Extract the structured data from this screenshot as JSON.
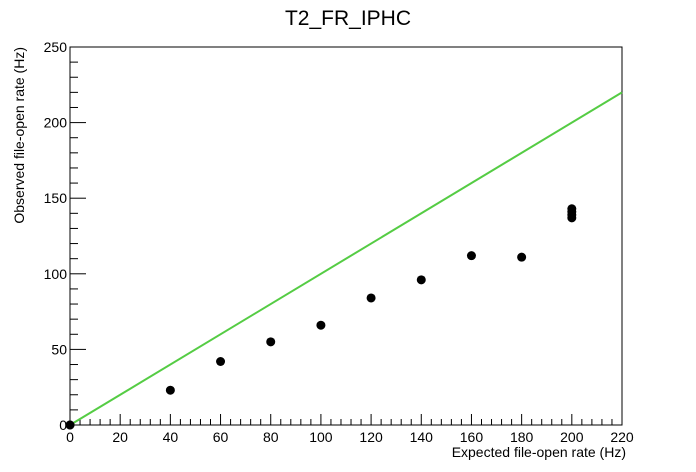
{
  "chart_data": {
    "type": "scatter",
    "title": "T2_FR_IPHC",
    "xlabel": "Expected file-open rate (Hz)",
    "ylabel": "Observed file-open rate (Hz)",
    "xlim": [
      0,
      220
    ],
    "ylim": [
      0,
      250
    ],
    "x_ticks": [
      "0",
      "20",
      "40",
      "60",
      "80",
      "100",
      "120",
      "140",
      "160",
      "180",
      "200",
      "220"
    ],
    "y_ticks": [
      "0",
      "50",
      "100",
      "150",
      "200",
      "250"
    ],
    "grid": false,
    "legend": "none",
    "series": [
      {
        "type": "scatter",
        "color": "#000000",
        "x": [
          0,
          0,
          40,
          60,
          80,
          100,
          120,
          140,
          160,
          180,
          200,
          200,
          200,
          200
        ],
        "y": [
          0,
          0,
          23,
          42,
          55,
          66,
          84,
          96,
          112,
          111,
          137,
          139,
          141,
          143
        ]
      },
      {
        "type": "line",
        "color": "#55cc44",
        "x": [
          0,
          220
        ],
        "y": [
          0,
          220
        ]
      }
    ]
  }
}
